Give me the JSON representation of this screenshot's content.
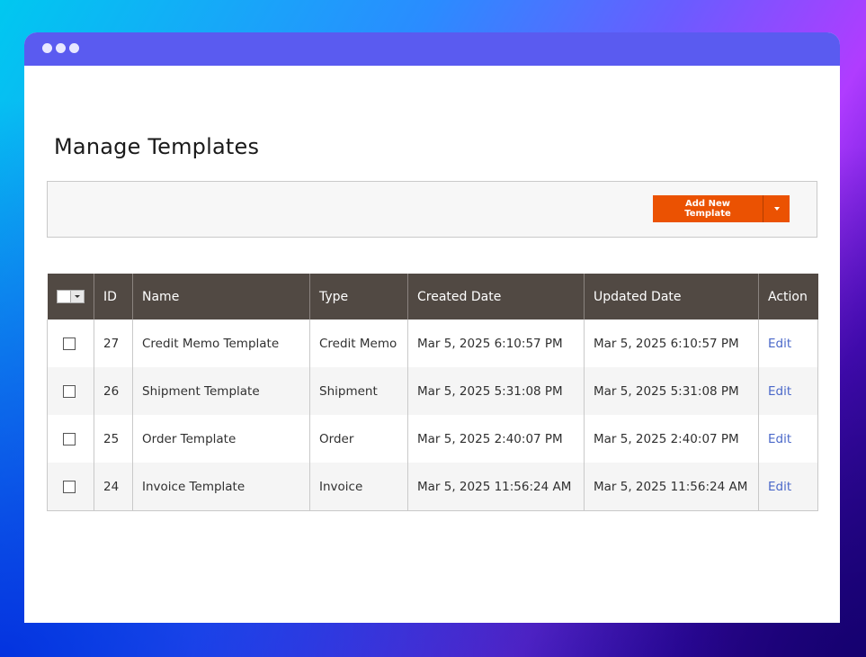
{
  "window": {
    "page_title": "Manage Templates"
  },
  "toolbar": {
    "add_button_label": "Add New Template"
  },
  "grid": {
    "columns": [
      "ID",
      "Name",
      "Type",
      "Created Date",
      "Updated Date",
      "Action"
    ],
    "rows": [
      {
        "id": "27",
        "name": "Credit Memo Template",
        "type": "Credit Memo",
        "created": "Mar 5, 2025 6:10:57 PM",
        "updated": "Mar 5, 2025 6:10:57 PM",
        "action": "Edit"
      },
      {
        "id": "26",
        "name": "Shipment Template",
        "type": "Shipment",
        "created": "Mar 5, 2025 5:31:08 PM",
        "updated": "Mar 5, 2025 5:31:08 PM",
        "action": "Edit"
      },
      {
        "id": "25",
        "name": "Order Template",
        "type": "Order",
        "created": "Mar 5, 2025 2:40:07 PM",
        "updated": "Mar 5, 2025 2:40:07 PM",
        "action": "Edit"
      },
      {
        "id": "24",
        "name": "Invoice Template",
        "type": "Invoice",
        "created": "Mar 5, 2025 11:56:24 AM",
        "updated": "Mar 5, 2025 11:56:24 AM",
        "action": "Edit"
      }
    ]
  },
  "colors": {
    "titlebar": "#5a5bf0",
    "accent_button": "#eb5202",
    "table_header": "#514943",
    "link": "#4a68c9"
  },
  "icons": {
    "window_controls": [
      "window-dot-icon",
      "window-dot-icon",
      "window-dot-icon"
    ],
    "dropdown": "caret-down-icon"
  }
}
